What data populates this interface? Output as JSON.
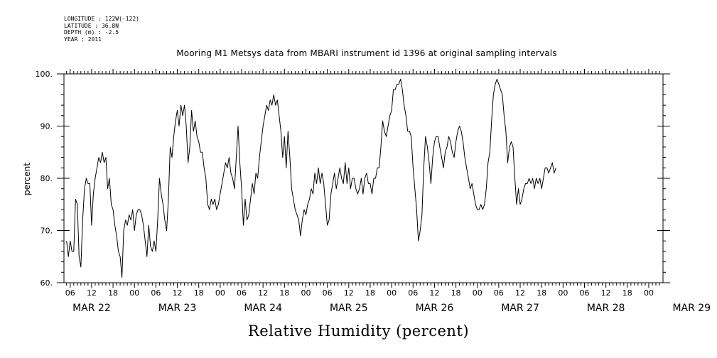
{
  "header": {
    "meta_lines": [
      "LONGITUDE : 122W(-122)",
      "LATITUDE : 36.8N",
      "DEPTH (m) : -2.5",
      "YEAR : 2011"
    ],
    "title": "Mooring M1 Metsys data from MBARI instrument id 1396 at original sampling intervals"
  },
  "footer": {
    "title": "Relative Humidity (percent)"
  },
  "chart_data": {
    "type": "line",
    "title": "Mooring M1 Metsys data from MBARI instrument id 1396 at original sampling intervals",
    "ylabel": "percent",
    "xlabel": "Relative Humidity (percent)",
    "ylim": [
      60,
      100
    ],
    "yticks": [
      60,
      70,
      80,
      90,
      100
    ],
    "x_units": "hours since MAR 22 00:00 (2011)",
    "xlim": [
      5,
      142.5
    ],
    "hour_ticks": [
      {
        "t": 6,
        "label": "06"
      },
      {
        "t": 12,
        "label": "12"
      },
      {
        "t": 18,
        "label": "18"
      },
      {
        "t": 24,
        "label": "00"
      },
      {
        "t": 30,
        "label": "06"
      },
      {
        "t": 36,
        "label": "12"
      },
      {
        "t": 42,
        "label": "18"
      },
      {
        "t": 48,
        "label": "00"
      },
      {
        "t": 54,
        "label": "06"
      },
      {
        "t": 60,
        "label": "12"
      },
      {
        "t": 66,
        "label": "18"
      },
      {
        "t": 72,
        "label": "00"
      },
      {
        "t": 78,
        "label": "06"
      },
      {
        "t": 84,
        "label": "12"
      },
      {
        "t": 90,
        "label": "18"
      },
      {
        "t": 96,
        "label": "00"
      },
      {
        "t": 102,
        "label": "06"
      },
      {
        "t": 108,
        "label": "12"
      },
      {
        "t": 114,
        "label": "18"
      },
      {
        "t": 120,
        "label": "00"
      },
      {
        "t": 126,
        "label": "06"
      },
      {
        "t": 132,
        "label": "12"
      },
      {
        "t": 138,
        "label": "18"
      },
      {
        "t": 144,
        "label": "00"
      },
      {
        "t": 150,
        "label": "06"
      },
      {
        "t": 156,
        "label": "12"
      },
      {
        "t": 162,
        "label": "18"
      },
      {
        "t": 168,
        "label": "00"
      }
    ],
    "day_labels": [
      {
        "t": 12,
        "label": "MAR 22"
      },
      {
        "t": 36,
        "label": "MAR 23"
      },
      {
        "t": 60,
        "label": "MAR 24"
      },
      {
        "t": 84,
        "label": "MAR 25"
      },
      {
        "t": 108,
        "label": "MAR 26"
      },
      {
        "t": 132,
        "label": "MAR 27"
      },
      {
        "t": 156,
        "label": "MAR 28"
      },
      {
        "t": 180,
        "label": "MAR 29"
      }
    ],
    "series": [
      {
        "color": "#000000",
        "points": [
          [
            5.0,
            68
          ],
          [
            5.5,
            65
          ],
          [
            6.0,
            68
          ],
          [
            6.5,
            66
          ],
          [
            7.0,
            66
          ],
          [
            7.5,
            76
          ],
          [
            8.0,
            75
          ],
          [
            8.5,
            65
          ],
          [
            9.0,
            63
          ],
          [
            9.5,
            72
          ],
          [
            10.0,
            78
          ],
          [
            10.5,
            80
          ],
          [
            11.0,
            79
          ],
          [
            11.5,
            79
          ],
          [
            12.0,
            71
          ],
          [
            12.5,
            77
          ],
          [
            13.0,
            80
          ],
          [
            13.5,
            82
          ],
          [
            14.0,
            84
          ],
          [
            14.5,
            83
          ],
          [
            15.0,
            85
          ],
          [
            15.5,
            83
          ],
          [
            16.0,
            84
          ],
          [
            16.5,
            78
          ],
          [
            17.0,
            80
          ],
          [
            17.5,
            75
          ],
          [
            18.0,
            74
          ],
          [
            18.5,
            71
          ],
          [
            19.0,
            69
          ],
          [
            19.5,
            66
          ],
          [
            20.0,
            65
          ],
          [
            20.5,
            61
          ],
          [
            21.0,
            70
          ],
          [
            21.5,
            72
          ],
          [
            22.0,
            71
          ],
          [
            22.5,
            73
          ],
          [
            23.0,
            72
          ],
          [
            23.5,
            74
          ],
          [
            24.0,
            70
          ],
          [
            24.5,
            73
          ],
          [
            25.0,
            74
          ],
          [
            25.5,
            74
          ],
          [
            26.0,
            73
          ],
          [
            26.5,
            71
          ],
          [
            27.0,
            68
          ],
          [
            27.5,
            65
          ],
          [
            28.0,
            71
          ],
          [
            28.5,
            67
          ],
          [
            29.0,
            66
          ],
          [
            29.5,
            68
          ],
          [
            30.0,
            66
          ],
          [
            30.5,
            72
          ],
          [
            31.0,
            80
          ],
          [
            31.5,
            77
          ],
          [
            32.0,
            75
          ],
          [
            32.5,
            72
          ],
          [
            33.0,
            70
          ],
          [
            33.5,
            76
          ],
          [
            34.0,
            86
          ],
          [
            34.5,
            84
          ],
          [
            35.0,
            88
          ],
          [
            35.5,
            91
          ],
          [
            36.0,
            93
          ],
          [
            36.5,
            90
          ],
          [
            37.0,
            94
          ],
          [
            37.5,
            92
          ],
          [
            38.0,
            94
          ],
          [
            38.5,
            90
          ],
          [
            39.0,
            83
          ],
          [
            39.5,
            86
          ],
          [
            40.0,
            93
          ],
          [
            40.5,
            89
          ],
          [
            41.0,
            91
          ],
          [
            41.5,
            88
          ],
          [
            42.0,
            87
          ],
          [
            42.5,
            85
          ],
          [
            43.0,
            85
          ],
          [
            43.5,
            82
          ],
          [
            44.0,
            80
          ],
          [
            44.5,
            75
          ],
          [
            45.0,
            74
          ],
          [
            45.5,
            76
          ],
          [
            46.0,
            75
          ],
          [
            46.5,
            76
          ],
          [
            47.0,
            74
          ],
          [
            47.5,
            75
          ],
          [
            48.0,
            77
          ],
          [
            48.5,
            79
          ],
          [
            49.0,
            81
          ],
          [
            49.5,
            83
          ],
          [
            50.0,
            82
          ],
          [
            50.5,
            84
          ],
          [
            51.0,
            81
          ],
          [
            51.5,
            80
          ],
          [
            52.0,
            78
          ],
          [
            52.5,
            84
          ],
          [
            53.0,
            90
          ],
          [
            53.5,
            83
          ],
          [
            54.0,
            78
          ],
          [
            54.5,
            71
          ],
          [
            55.0,
            76
          ],
          [
            55.5,
            72
          ],
          [
            56.0,
            73
          ],
          [
            56.5,
            76
          ],
          [
            57.0,
            79
          ],
          [
            57.5,
            77
          ],
          [
            58.0,
            81
          ],
          [
            58.5,
            80
          ],
          [
            59.0,
            84
          ],
          [
            59.5,
            87
          ],
          [
            60.0,
            90
          ],
          [
            60.5,
            92
          ],
          [
            61.0,
            94
          ],
          [
            61.5,
            93
          ],
          [
            62.0,
            95
          ],
          [
            62.5,
            94
          ],
          [
            63.0,
            96
          ],
          [
            63.5,
            94
          ],
          [
            64.0,
            95
          ],
          [
            64.5,
            92
          ],
          [
            65.0,
            89
          ],
          [
            65.5,
            84
          ],
          [
            66.0,
            88
          ],
          [
            66.5,
            82
          ],
          [
            67.0,
            89
          ],
          [
            67.5,
            84
          ],
          [
            68.0,
            78
          ],
          [
            68.5,
            76
          ],
          [
            69.0,
            74
          ],
          [
            69.5,
            73
          ],
          [
            70.0,
            72
          ],
          [
            70.5,
            69
          ],
          [
            71.0,
            72
          ],
          [
            71.5,
            74
          ],
          [
            72.0,
            73
          ],
          [
            72.5,
            75
          ],
          [
            73.0,
            76
          ],
          [
            73.5,
            78
          ],
          [
            74.0,
            77
          ],
          [
            74.5,
            81
          ],
          [
            75.0,
            79
          ],
          [
            75.5,
            82
          ],
          [
            76.0,
            79
          ],
          [
            76.5,
            81
          ],
          [
            77.0,
            79
          ],
          [
            77.5,
            75
          ],
          [
            78.0,
            71
          ],
          [
            78.5,
            72
          ],
          [
            79.0,
            77
          ],
          [
            79.5,
            79
          ],
          [
            80.0,
            81
          ],
          [
            80.5,
            78
          ],
          [
            81.0,
            80
          ],
          [
            81.5,
            82
          ],
          [
            82.0,
            80
          ],
          [
            82.5,
            79
          ],
          [
            83.0,
            83
          ],
          [
            83.5,
            79
          ],
          [
            84.0,
            82
          ],
          [
            84.5,
            78
          ],
          [
            85.0,
            80
          ],
          [
            85.5,
            80
          ],
          [
            86.0,
            78
          ],
          [
            86.5,
            77
          ],
          [
            87.0,
            78
          ],
          [
            87.5,
            80
          ],
          [
            88.0,
            77
          ],
          [
            88.5,
            80
          ],
          [
            89.0,
            81
          ],
          [
            89.5,
            79
          ],
          [
            90.0,
            79
          ],
          [
            90.5,
            77
          ],
          [
            91.0,
            80
          ],
          [
            91.5,
            80
          ],
          [
            92.0,
            82
          ],
          [
            92.5,
            82
          ],
          [
            93.0,
            86
          ],
          [
            93.5,
            91
          ],
          [
            94.0,
            89
          ],
          [
            94.5,
            88
          ],
          [
            95.0,
            90
          ],
          [
            95.5,
            92
          ],
          [
            96.0,
            93
          ],
          [
            96.5,
            97
          ],
          [
            97.0,
            97
          ],
          [
            97.5,
            98
          ],
          [
            98.0,
            98
          ],
          [
            98.5,
            99
          ],
          [
            99.0,
            97
          ],
          [
            99.5,
            94
          ],
          [
            100.0,
            92
          ],
          [
            100.5,
            89
          ],
          [
            101.0,
            89
          ],
          [
            101.5,
            88
          ],
          [
            102.0,
            82
          ],
          [
            102.5,
            78
          ],
          [
            103.0,
            74
          ],
          [
            103.5,
            68
          ],
          [
            104.0,
            70
          ],
          [
            104.5,
            73
          ],
          [
            105.0,
            82
          ],
          [
            105.5,
            88
          ],
          [
            106.0,
            86
          ],
          [
            106.5,
            83
          ],
          [
            107.0,
            79
          ],
          [
            107.5,
            84
          ],
          [
            108.0,
            87
          ],
          [
            108.5,
            88
          ],
          [
            109.0,
            88
          ],
          [
            109.5,
            86
          ],
          [
            110.0,
            84
          ],
          [
            110.5,
            82
          ],
          [
            111.0,
            85
          ],
          [
            111.5,
            86
          ],
          [
            112.0,
            88
          ],
          [
            112.5,
            87
          ],
          [
            113.0,
            85
          ],
          [
            113.5,
            84
          ],
          [
            114.0,
            87
          ],
          [
            114.5,
            89
          ],
          [
            115.0,
            90
          ],
          [
            115.5,
            89
          ],
          [
            116.0,
            87
          ],
          [
            116.5,
            84
          ],
          [
            117.0,
            82
          ],
          [
            117.5,
            80
          ],
          [
            118.0,
            78
          ],
          [
            118.5,
            79
          ],
          [
            119.0,
            77
          ],
          [
            119.5,
            75
          ],
          [
            120.0,
            74
          ],
          [
            120.5,
            74
          ],
          [
            121.0,
            75
          ],
          [
            121.5,
            74
          ],
          [
            122.0,
            75
          ],
          [
            122.5,
            78
          ],
          [
            123.0,
            83
          ],
          [
            123.5,
            85
          ],
          [
            124.0,
            91
          ],
          [
            124.5,
            96
          ],
          [
            125.0,
            98
          ],
          [
            125.5,
            99
          ],
          [
            126.0,
            98
          ],
          [
            126.5,
            97
          ],
          [
            127.0,
            96
          ],
          [
            127.5,
            92
          ],
          [
            128.0,
            89
          ],
          [
            128.5,
            83
          ],
          [
            129.0,
            86
          ],
          [
            129.5,
            87
          ],
          [
            130.0,
            86
          ],
          [
            130.5,
            80
          ],
          [
            131.0,
            75
          ],
          [
            131.5,
            78
          ],
          [
            132.0,
            75
          ],
          [
            132.5,
            76
          ],
          [
            133.0,
            78
          ],
          [
            133.5,
            79
          ],
          [
            134.0,
            79
          ],
          [
            134.5,
            80
          ],
          [
            135.0,
            79
          ],
          [
            135.5,
            80
          ],
          [
            136.0,
            78
          ],
          [
            136.5,
            80
          ],
          [
            137.0,
            79
          ],
          [
            137.5,
            80
          ],
          [
            138.0,
            78
          ],
          [
            138.5,
            80
          ],
          [
            139.0,
            82
          ],
          [
            139.5,
            82
          ],
          [
            140.0,
            81
          ],
          [
            140.5,
            82
          ],
          [
            141.0,
            83
          ],
          [
            141.5,
            81
          ],
          [
            142.0,
            82
          ]
        ]
      }
    ]
  }
}
